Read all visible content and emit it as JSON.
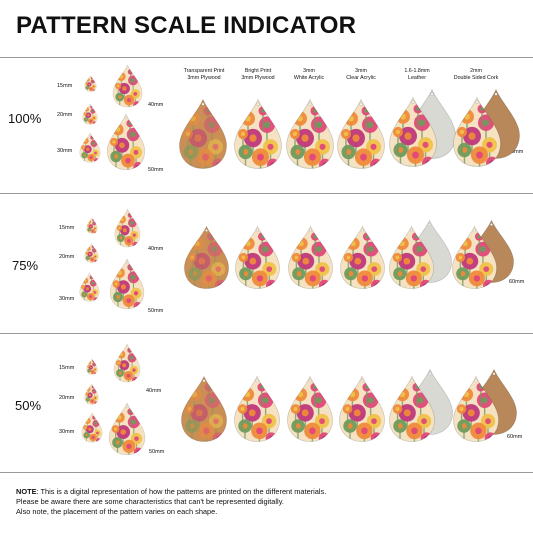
{
  "title": "PATTERN SCALE INDICATOR",
  "sizes": [
    "15mm",
    "20mm",
    "30mm",
    "40mm",
    "50mm"
  ],
  "right_size": "60mm",
  "materials": [
    {
      "line1": "Transparent Print",
      "line2": "3mm Plywood"
    },
    {
      "line1": "Bright Print",
      "line2": "3mm Plywood"
    },
    {
      "line1": "3mm",
      "line2": "White Acrylic"
    },
    {
      "line1": "3mm",
      "line2": "Clear Acrylic"
    },
    {
      "line1": "1.6-1.8mm",
      "line2": "Leather"
    },
    {
      "line1": "2mm",
      "line2": "Double Sided Cork"
    }
  ],
  "scales": [
    "100%",
    "75%",
    "50%"
  ],
  "note": {
    "label": "NOTE",
    "line1": ": This is a digital representation of how the patterns are printed on the different materials.",
    "line2": "Please be aware there are some characteristics that can't be represented digitally.",
    "line3": "Also note, the placement of the pattern varies on each shape."
  },
  "colors": {
    "wood": "#c98f55",
    "orange": "#ef8a3a",
    "pink": "#e2487a",
    "magenta": "#c0377a",
    "yellow": "#f0c24a",
    "green": "#6f9a5c",
    "cream": "#f5e2c2",
    "leather": "#d9d9d4",
    "cork": "#b8875a"
  }
}
